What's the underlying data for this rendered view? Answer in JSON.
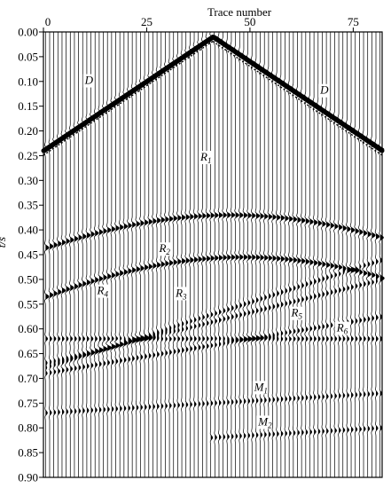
{
  "chart_data": {
    "type": "seismic-wiggle",
    "xlabel": "Trace number",
    "ylabel": "t/s",
    "xlim": [
      0,
      82
    ],
    "ylim": [
      0.9,
      0.0
    ],
    "x_ticks": [
      0,
      25,
      50,
      75
    ],
    "x_ticks_position": "top",
    "y_ticks": [
      "0.00",
      "0.05",
      "0.10",
      "0.15",
      "0.20",
      "0.25",
      "0.30",
      "0.35",
      "0.40",
      "0.45",
      "0.50",
      "0.55",
      "0.60",
      "0.65",
      "0.70",
      "0.75",
      "0.80",
      "0.85",
      "0.90"
    ],
    "trace_count": 82,
    "direct_wave_apex": {
      "trace": 41,
      "time": 0.01
    },
    "events": [
      {
        "name": "D",
        "type": "direct-wave-left",
        "from": [
          0,
          0.24
        ],
        "to": [
          41,
          0.01
        ]
      },
      {
        "name": "D",
        "type": "direct-wave-right",
        "from": [
          41,
          0.01
        ],
        "to": [
          82,
          0.24
        ]
      },
      {
        "name": "R1",
        "type": "hyperbola",
        "apex_trace": 45,
        "t0": 0.37,
        "edge_time": 0.44
      },
      {
        "name": "R2",
        "type": "hyperbola",
        "apex_trace": 48,
        "t0": 0.455,
        "edge_time": 0.53
      },
      {
        "name": "R3",
        "type": "dipping",
        "from": [
          0,
          0.68
        ],
        "to": [
          82,
          0.46
        ]
      },
      {
        "name": "R4",
        "type": "dipping",
        "from": [
          0,
          0.67
        ],
        "to": [
          82,
          0.5
        ]
      },
      {
        "name": "R5",
        "type": "dipping",
        "from": [
          0,
          0.69
        ],
        "to": [
          82,
          0.575
        ]
      },
      {
        "name": "R6",
        "type": "dipping",
        "from": [
          0,
          0.62
        ],
        "to": [
          82,
          0.62
        ]
      },
      {
        "name": "M1",
        "type": "multiple",
        "from": [
          0,
          0.77
        ],
        "to": [
          82,
          0.73
        ]
      },
      {
        "name": "M2",
        "type": "multiple",
        "from": [
          40,
          0.82
        ],
        "to": [
          82,
          0.8
        ]
      }
    ],
    "annotations": [
      {
        "main": "D",
        "sub": "",
        "trace": 10,
        "time": 0.105
      },
      {
        "main": "D",
        "sub": "",
        "trace": 67,
        "time": 0.125
      },
      {
        "main": "R",
        "sub": "1",
        "trace": 38,
        "time": 0.26
      },
      {
        "main": "R",
        "sub": "2",
        "trace": 28,
        "time": 0.445
      },
      {
        "main": "R",
        "sub": "3",
        "trace": 32,
        "time": 0.535
      },
      {
        "main": "R",
        "sub": "4",
        "trace": 13,
        "time": 0.53
      },
      {
        "main": "R",
        "sub": "5",
        "trace": 60,
        "time": 0.575
      },
      {
        "main": "R",
        "sub": "6",
        "trace": 71,
        "time": 0.605
      },
      {
        "main": "M",
        "sub": "1",
        "trace": 51,
        "time": 0.725
      },
      {
        "main": "M",
        "sub": "2",
        "trace": 52,
        "time": 0.795
      }
    ]
  }
}
